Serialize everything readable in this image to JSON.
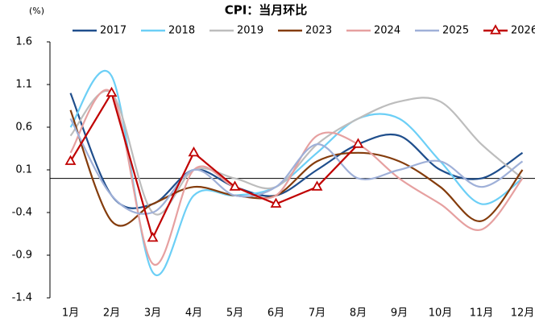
{
  "chart_data": {
    "type": "line",
    "title": "CPI：当月环比",
    "y_unit": "(%)",
    "categories": [
      "1月",
      "2月",
      "3月",
      "4月",
      "5月",
      "6月",
      "7月",
      "8月",
      "9月",
      "10月",
      "11月",
      "12月"
    ],
    "ylim": [
      -1.4,
      1.6
    ],
    "yticks": [
      -1.4,
      -0.9,
      -0.4,
      0.1,
      0.6,
      1.1,
      1.6
    ],
    "series": [
      {
        "name": "2017",
        "color": "#1f4e8c",
        "smooth": true,
        "values": [
          1.0,
          -0.2,
          -0.3,
          0.1,
          -0.1,
          -0.2,
          0.1,
          0.4,
          0.5,
          0.1,
          0.0,
          0.3
        ]
      },
      {
        "name": "2018",
        "color": "#6ccff6",
        "smooth": true,
        "values": [
          0.6,
          1.2,
          -1.1,
          -0.2,
          -0.2,
          -0.1,
          0.3,
          0.7,
          0.7,
          0.2,
          -0.3,
          0.0
        ]
      },
      {
        "name": "2019",
        "color": "#bdbdbd",
        "smooth": true,
        "values": [
          0.5,
          1.0,
          -0.4,
          0.1,
          0.0,
          -0.1,
          0.4,
          0.7,
          0.9,
          0.9,
          0.4,
          0.0
        ]
      },
      {
        "name": "2023",
        "color": "#843c0c",
        "smooth": true,
        "values": [
          0.8,
          -0.5,
          -0.3,
          -0.1,
          -0.2,
          -0.2,
          0.2,
          0.3,
          0.2,
          -0.1,
          -0.5,
          0.1
        ]
      },
      {
        "name": "2024",
        "color": "#e6a0a0",
        "smooth": true,
        "values": [
          0.3,
          1.0,
          -1.0,
          0.1,
          -0.1,
          -0.2,
          0.5,
          0.4,
          0.0,
          -0.3,
          -0.6,
          0.0
        ]
      },
      {
        "name": "2025",
        "color": "#9fb0d8",
        "smooth": true,
        "values": [
          0.7,
          -0.2,
          -0.4,
          0.1,
          -0.2,
          -0.1,
          0.4,
          0.0,
          0.1,
          0.2,
          -0.1,
          0.2
        ]
      },
      {
        "name": "2026",
        "color": "#c00000",
        "smooth": false,
        "marker": "triangle",
        "values": [
          0.2,
          1.0,
          -0.7,
          0.3,
          -0.1,
          -0.3,
          -0.1,
          0.4,
          null,
          null,
          null,
          null
        ]
      }
    ]
  }
}
